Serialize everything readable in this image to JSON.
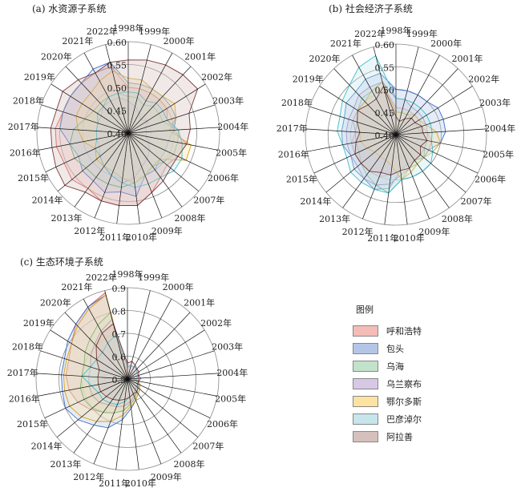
{
  "legend": {
    "title": "图例",
    "items": [
      {
        "name": "呼和浩特",
        "fill": "#f4bcb6",
        "line": "#e0463e"
      },
      {
        "name": "包头",
        "fill": "#b4c6e7",
        "line": "#3a6fc4"
      },
      {
        "name": "乌海",
        "fill": "#c3e2cb",
        "line": "#4aa55a"
      },
      {
        "name": "乌兰察布",
        "fill": "#d7c9e6",
        "line": "#9a7ab8"
      },
      {
        "name": "鄂尔多斯",
        "fill": "#fde3a0",
        "line": "#d9a21a"
      },
      {
        "name": "巴彦淖尔",
        "fill": "#c6e6ec",
        "line": "#3bbccc"
      },
      {
        "name": "阿拉善",
        "fill": "#d5c0bd",
        "line": "#7a3a3a"
      }
    ]
  },
  "chart_data": [
    {
      "type": "radar",
      "title": "(a) 水资源子系统",
      "categories": [
        "1998年",
        "1999年",
        "2000年",
        "2001年",
        "2002年",
        "2003年",
        "2004年",
        "2005年",
        "2006年",
        "2007年",
        "2008年",
        "2009年",
        "2010年",
        "2011年",
        "2012年",
        "2013年",
        "2014年",
        "2015年",
        "2016年",
        "2017年",
        "2018年",
        "2019年",
        "2020年",
        "2021年",
        "2022年"
      ],
      "rlim": [
        0.4,
        0.6
      ],
      "ticks": [
        0.4,
        0.45,
        0.5,
        0.55,
        0.6
      ],
      "tick_labels": [
        "0.40",
        "0.45",
        "0.50",
        "0.55",
        "0.60"
      ],
      "series": [
        {
          "name": "呼和浩特",
          "values": [
            0.5,
            0.5,
            0.5,
            0.5,
            0.5,
            0.49,
            0.5,
            0.53,
            0.52,
            0.51,
            0.52,
            0.54,
            0.56,
            0.56,
            0.56,
            0.55,
            0.56,
            0.555,
            0.56,
            0.56,
            0.55,
            0.55,
            0.55,
            0.55,
            0.55
          ]
        },
        {
          "name": "包头",
          "values": [
            0.51,
            0.51,
            0.51,
            0.51,
            0.51,
            0.51,
            0.5,
            0.49,
            0.49,
            0.49,
            0.5,
            0.5,
            0.54,
            0.53,
            0.54,
            0.53,
            0.53,
            0.52,
            0.53,
            0.55,
            0.55,
            0.55,
            0.55,
            0.56,
            0.56
          ]
        },
        {
          "name": "乌海",
          "values": [
            0.48,
            0.48,
            0.47,
            0.48,
            0.48,
            0.48,
            0.51,
            0.51,
            0.51,
            0.5,
            0.49,
            0.5,
            0.51,
            0.52,
            0.52,
            0.52,
            0.52,
            0.53,
            0.53,
            0.52,
            0.5,
            0.49,
            0.49,
            0.49,
            0.49
          ]
        },
        {
          "name": "乌兰察布",
          "values": [
            0.47,
            0.46,
            0.45,
            0.44,
            0.45,
            0.44,
            0.44,
            0.44,
            0.45,
            0.46,
            0.47,
            0.48,
            0.5,
            0.51,
            0.5,
            0.49,
            0.48,
            0.47,
            0.47,
            0.47,
            0.47,
            0.47,
            0.48,
            0.48,
            0.48
          ]
        },
        {
          "name": "鄂尔多斯",
          "values": [
            0.52,
            0.52,
            0.51,
            0.51,
            0.52,
            0.51,
            0.49,
            0.54,
            0.54,
            0.49,
            0.49,
            0.5,
            0.51,
            0.5,
            0.49,
            0.49,
            0.49,
            0.48,
            0.5,
            0.51,
            0.52,
            0.52,
            0.52,
            0.53,
            0.54
          ]
        },
        {
          "name": "巴彦淖尔",
          "values": [
            0.49,
            0.49,
            0.48,
            0.49,
            0.49,
            0.49,
            0.51,
            0.52,
            0.53,
            0.53,
            0.52,
            0.52,
            0.52,
            0.51,
            0.5,
            0.49,
            0.48,
            0.48,
            0.47,
            0.47,
            0.47,
            0.48,
            0.48,
            0.49,
            0.49
          ]
        },
        {
          "name": "阿拉善",
          "values": [
            0.56,
            0.565,
            0.57,
            0.575,
            0.58,
            0.54,
            0.536,
            0.53,
            0.52,
            0.52,
            0.53,
            0.54,
            0.56,
            0.56,
            0.56,
            0.56,
            0.58,
            0.575,
            0.57,
            0.57,
            0.565,
            0.57,
            0.56,
            0.55,
            0.56
          ]
        }
      ]
    },
    {
      "type": "radar",
      "title": "(b) 社会经济子系统",
      "categories": [
        "1998年",
        "1999年",
        "2000年",
        "2001年",
        "2002年",
        "2003年",
        "2004年",
        "2005年",
        "2006年",
        "2007年",
        "2008年",
        "2009年",
        "2010年",
        "2011年",
        "2012年",
        "2013年",
        "2014年",
        "2015年",
        "2016年",
        "2017年",
        "2018年",
        "2019年",
        "2020年",
        "2021年",
        "2022年"
      ],
      "rlim": [
        0.4,
        0.6
      ],
      "ticks": [
        0.4,
        0.45,
        0.5,
        0.55,
        0.6
      ],
      "tick_labels": [
        "0.40",
        "0.45",
        "0.50",
        "0.55",
        "0.60"
      ],
      "series": [
        {
          "name": "呼和浩特",
          "values": [
            0.46,
            0.46,
            0.46,
            0.46,
            0.46,
            0.46,
            0.47,
            0.48,
            0.48,
            0.48,
            0.47,
            0.47,
            0.48,
            0.49,
            0.5,
            0.5,
            0.5,
            0.5,
            0.5,
            0.49,
            0.5,
            0.5,
            0.5,
            0.5,
            0.51
          ]
        },
        {
          "name": "包头",
          "values": [
            0.5,
            0.5,
            0.5,
            0.5,
            0.51,
            0.51,
            0.51,
            0.5,
            0.48,
            0.48,
            0.47,
            0.47,
            0.48,
            0.52,
            0.53,
            0.52,
            0.52,
            0.51,
            0.52,
            0.52,
            0.52,
            0.53,
            0.53,
            0.54,
            0.54
          ]
        },
        {
          "name": "乌海",
          "values": [
            0.45,
            0.45,
            0.45,
            0.45,
            0.45,
            0.45,
            0.46,
            0.47,
            0.47,
            0.48,
            0.48,
            0.48,
            0.5,
            0.53,
            0.52,
            0.51,
            0.5,
            0.49,
            0.49,
            0.49,
            0.49,
            0.5,
            0.51,
            0.51,
            0.52
          ]
        },
        {
          "name": "乌兰察布",
          "values": [
            0.48,
            0.48,
            0.47,
            0.47,
            0.47,
            0.47,
            0.47,
            0.47,
            0.47,
            0.47,
            0.47,
            0.48,
            0.49,
            0.51,
            0.52,
            0.52,
            0.51,
            0.51,
            0.51,
            0.51,
            0.51,
            0.51,
            0.52,
            0.52,
            0.52
          ]
        },
        {
          "name": "鄂尔多斯",
          "values": [
            0.45,
            0.45,
            0.45,
            0.46,
            0.46,
            0.47,
            0.49,
            0.5,
            0.49,
            0.48,
            0.48,
            0.49,
            0.5,
            0.47,
            0.46,
            0.46,
            0.46,
            0.47,
            0.48,
            0.48,
            0.49,
            0.5,
            0.5,
            0.51,
            0.52
          ]
        },
        {
          "name": "巴彦淖尔",
          "values": [
            0.48,
            0.48,
            0.48,
            0.48,
            0.48,
            0.48,
            0.48,
            0.48,
            0.49,
            0.5,
            0.5,
            0.5,
            0.5,
            0.53,
            0.53,
            0.53,
            0.53,
            0.52,
            0.52,
            0.53,
            0.53,
            0.54,
            0.55,
            0.57,
            0.58
          ]
        },
        {
          "name": "阿拉善",
          "values": [
            0.44,
            0.43,
            0.44,
            0.45,
            0.45,
            0.46,
            0.46,
            0.47,
            0.46,
            0.47,
            0.47,
            0.48,
            0.48,
            0.49,
            0.49,
            0.5,
            0.5,
            0.5,
            0.49,
            0.48,
            0.49,
            0.5,
            0.49,
            0.49,
            0.51
          ]
        }
      ]
    },
    {
      "type": "radar",
      "title": "(c) 生态环境子系统",
      "categories": [
        "1998年",
        "1999年",
        "2000年",
        "2001年",
        "2002年",
        "2003年",
        "2004年",
        "2005年",
        "2006年",
        "2007年",
        "2008年",
        "2009年",
        "2010年",
        "2011年",
        "2012年",
        "2013年",
        "2014年",
        "2015年",
        "2016年",
        "2017年",
        "2018年",
        "2019年",
        "2020年",
        "2021年",
        "2022年"
      ],
      "rlim": [
        0.5,
        0.9
      ],
      "ticks": [
        0.5,
        0.6,
        0.7,
        0.8,
        0.9
      ],
      "tick_labels": [
        "0.5",
        "0.6",
        "0.7",
        "0.8",
        "0.9"
      ],
      "series": [
        {
          "name": "呼和浩特",
          "values": [
            0.52,
            0.53,
            0.53,
            0.53,
            0.53,
            0.53,
            0.53,
            0.54,
            0.55,
            0.56,
            0.57,
            0.59,
            0.61,
            0.64,
            0.66,
            0.68,
            0.71,
            0.74,
            0.76,
            0.77,
            0.77,
            0.79,
            0.83,
            0.86,
            0.89
          ]
        },
        {
          "name": "包头",
          "values": [
            0.51,
            0.52,
            0.52,
            0.52,
            0.52,
            0.53,
            0.53,
            0.55,
            0.56,
            0.57,
            0.58,
            0.6,
            0.63,
            0.68,
            0.73,
            0.75,
            0.78,
            0.8,
            0.79,
            0.79,
            0.79,
            0.81,
            0.83,
            0.86,
            0.88
          ]
        },
        {
          "name": "乌海",
          "values": [
            0.51,
            0.52,
            0.52,
            0.52,
            0.52,
            0.52,
            0.52,
            0.54,
            0.55,
            0.56,
            0.57,
            0.59,
            0.61,
            0.64,
            0.66,
            0.68,
            0.7,
            0.71,
            0.71,
            0.7,
            0.7,
            0.72,
            0.74,
            0.77,
            0.8
          ]
        },
        {
          "name": "乌兰察布",
          "values": [
            0.55,
            0.56,
            0.56,
            0.56,
            0.55,
            0.55,
            0.56,
            0.55,
            0.55,
            0.56,
            0.57,
            0.58,
            0.6,
            0.62,
            0.63,
            0.64,
            0.66,
            0.67,
            0.67,
            0.67,
            0.67,
            0.69,
            0.71,
            0.74,
            0.77
          ]
        },
        {
          "name": "鄂尔多斯",
          "values": [
            0.51,
            0.52,
            0.52,
            0.52,
            0.52,
            0.52,
            0.52,
            0.55,
            0.56,
            0.57,
            0.58,
            0.6,
            0.62,
            0.66,
            0.7,
            0.73,
            0.76,
            0.78,
            0.78,
            0.78,
            0.78,
            0.79,
            0.82,
            0.85,
            0.88
          ]
        },
        {
          "name": "巴彦淖尔",
          "values": [
            0.56,
            0.56,
            0.56,
            0.56,
            0.55,
            0.55,
            0.54,
            0.54,
            0.55,
            0.55,
            0.56,
            0.57,
            0.58,
            0.6,
            0.62,
            0.63,
            0.64,
            0.64,
            0.66,
            0.7,
            0.67,
            0.66,
            0.66,
            0.68,
            0.7
          ]
        },
        {
          "name": "阿拉善",
          "values": [
            0.57,
            0.58,
            0.57,
            0.56,
            0.56,
            0.55,
            0.55,
            0.55,
            0.55,
            0.56,
            0.57,
            0.57,
            0.58,
            0.59,
            0.6,
            0.61,
            0.62,
            0.63,
            0.63,
            0.63,
            0.63,
            0.66,
            0.7,
            0.73,
            0.75
          ]
        }
      ]
    }
  ]
}
